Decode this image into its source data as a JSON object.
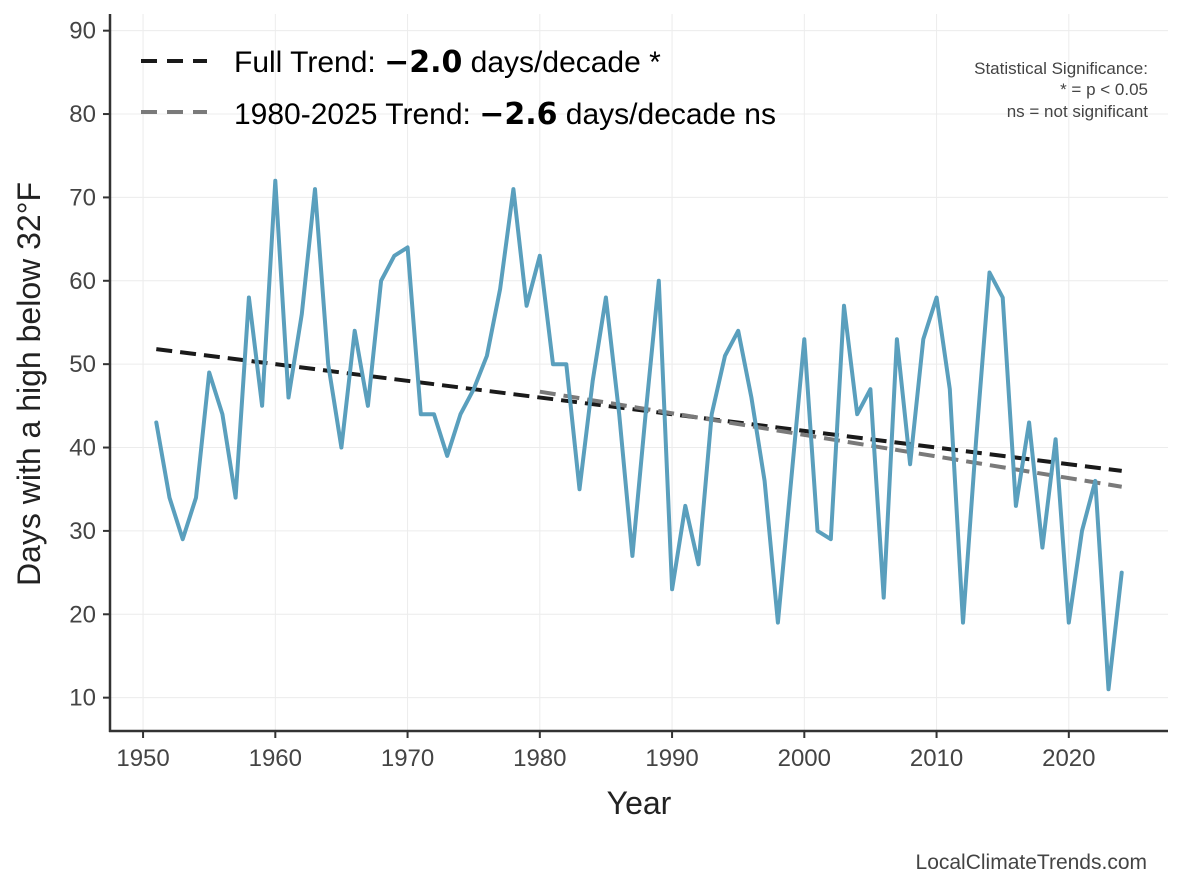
{
  "chart_data": {
    "type": "line",
    "title": "",
    "xlabel": "Year",
    "ylabel": "Days with a high below 32°F",
    "xlim": [
      1947.5,
      2027.5
    ],
    "ylim": [
      6,
      92
    ],
    "xticks": [
      1950,
      1960,
      1970,
      1980,
      1990,
      2000,
      2010,
      2020
    ],
    "yticks": [
      10,
      20,
      30,
      40,
      50,
      60,
      70,
      80,
      90
    ],
    "grid": true,
    "legend_position": "top-left",
    "series": [
      {
        "color": "#5a9fbd",
        "x": [
          1951,
          1952,
          1953,
          1954,
          1955,
          1956,
          1957,
          1958,
          1959,
          1960,
          1961,
          1962,
          1963,
          1964,
          1965,
          1966,
          1967,
          1968,
          1969,
          1970,
          1971,
          1972,
          1973,
          1974,
          1975,
          1976,
          1977,
          1978,
          1979,
          1980,
          1981,
          1982,
          1983,
          1984,
          1985,
          1986,
          1987,
          1988,
          1989,
          1990,
          1991,
          1992,
          1993,
          1994,
          1995,
          1996,
          1997,
          1998,
          1999,
          2000,
          2001,
          2002,
          2003,
          2004,
          2005,
          2006,
          2007,
          2008,
          2009,
          2010,
          2011,
          2012,
          2013,
          2014,
          2015,
          2016,
          2017,
          2018,
          2019,
          2020,
          2021,
          2022,
          2023,
          2024
        ],
        "y": [
          43,
          34,
          29,
          34,
          49,
          44,
          34,
          58,
          45,
          72,
          46,
          56,
          71,
          50,
          40,
          54,
          45,
          60,
          63,
          64,
          44,
          44,
          39,
          44,
          47,
          51,
          59,
          71,
          57,
          63,
          50,
          50,
          35,
          48,
          58,
          44,
          27,
          44,
          60,
          23,
          33,
          26,
          44,
          51,
          54,
          46,
          36,
          19,
          36,
          53,
          30,
          29,
          57,
          44,
          47,
          22,
          53,
          38,
          53,
          58,
          47,
          19,
          41,
          61,
          58,
          33,
          43,
          28,
          41,
          19,
          30,
          36,
          11,
          25
        ]
      }
    ],
    "trend_lines": [
      {
        "name_prefix": "Full Trend: ",
        "value": "−2.0",
        "name_suffix": " days/decade *",
        "color": "#1a1a1a",
        "x": [
          1951,
          2024
        ],
        "y": [
          51.8,
          37.2
        ]
      },
      {
        "name_prefix": "1980-2025 Trend: ",
        "value": "−2.6",
        "name_suffix": " days/decade ns",
        "color": "#7a7a7a",
        "x": [
          1980,
          2024
        ],
        "y": [
          46.7,
          35.3
        ]
      }
    ],
    "annotations": {
      "significance_title": "Statistical Significance:",
      "significance_star": "* = p < 0.05",
      "significance_ns": "ns = not significant",
      "source": "LocalClimateTrends.com"
    }
  }
}
